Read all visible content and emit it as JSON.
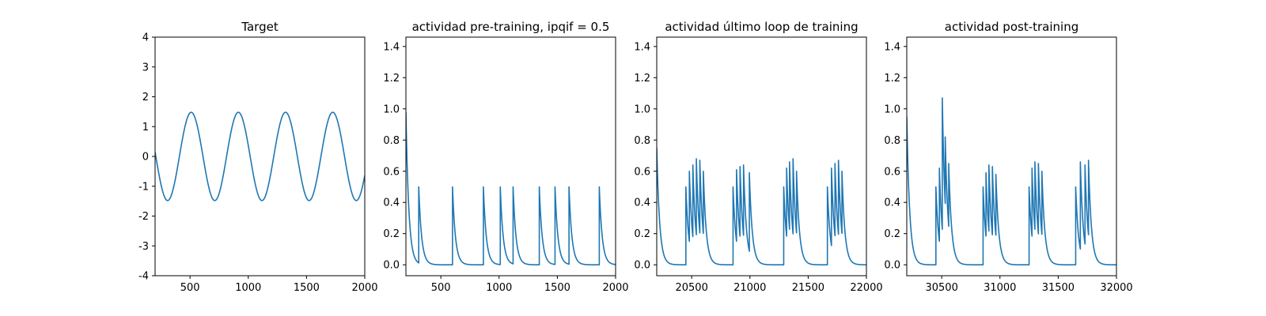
{
  "chart_data": [
    {
      "type": "line",
      "title": "Target",
      "xlabel": "",
      "ylabel": "",
      "xlim": [
        200,
        2000
      ],
      "ylim": [
        -4,
        4
      ],
      "xticks": [
        500,
        1000,
        1500,
        2000
      ],
      "yticks": [
        -4,
        -3,
        -2,
        -1,
        0,
        1,
        2,
        3,
        4
      ],
      "grid": false,
      "color": "#1f77b4",
      "signal": {
        "kind": "sine",
        "amplitude": 1.48,
        "period": 405,
        "peaks_at": [
          510,
          915,
          1320,
          1725
        ]
      },
      "series": [
        {
          "x_range": [
            200,
            2000
          ],
          "description_points": [
            [
              200,
              0.4
            ],
            [
              305,
              -1.48
            ],
            [
              510,
              1.48
            ],
            [
              712,
              -1.48
            ],
            [
              915,
              1.48
            ],
            [
              1117,
              -1.48
            ],
            [
              1320,
              1.48
            ],
            [
              1522,
              -1.48
            ],
            [
              1725,
              1.48
            ],
            [
              1928,
              -1.48
            ],
            [
              2000,
              -0.4
            ]
          ]
        }
      ]
    },
    {
      "type": "line",
      "title": "actividad pre-training, ipqif = 0.5",
      "xlabel": "",
      "ylabel": "",
      "xlim": [
        200,
        2000
      ],
      "ylim": [
        -0.07,
        1.46
      ],
      "xticks": [
        500,
        1000,
        1500,
        2000
      ],
      "yticks": [
        0.0,
        0.2,
        0.4,
        0.6,
        0.8,
        1.0,
        1.2,
        1.4
      ],
      "grid": false,
      "color": "#1f77b4",
      "decay": 25,
      "initial": {
        "x": 200,
        "y": 0.98
      },
      "spikes": [
        {
          "x": 310,
          "y": 0.5
        },
        {
          "x": 600,
          "y": 0.5
        },
        {
          "x": 865,
          "y": 0.5
        },
        {
          "x": 1010,
          "y": 0.5
        },
        {
          "x": 1120,
          "y": 0.5
        },
        {
          "x": 1345,
          "y": 0.5
        },
        {
          "x": 1480,
          "y": 0.5
        },
        {
          "x": 1600,
          "y": 0.5
        },
        {
          "x": 1860,
          "y": 0.5
        }
      ]
    },
    {
      "type": "line",
      "title": "actividad último loop de training",
      "xlabel": "",
      "ylabel": "",
      "xlim": [
        20200,
        22000
      ],
      "ylim": [
        -0.07,
        1.46
      ],
      "xticks": [
        20500,
        21000,
        21500,
        22000
      ],
      "yticks": [
        0.0,
        0.2,
        0.4,
        0.6,
        0.8,
        1.0,
        1.2,
        1.4
      ],
      "grid": false,
      "color": "#1f77b4",
      "decay": 25,
      "initial": {
        "x": 20200,
        "y": 0.75
      },
      "spikes": [
        {
          "x": 20450,
          "y": 0.5
        },
        {
          "x": 20480,
          "y": 0.6
        },
        {
          "x": 20510,
          "y": 0.64
        },
        {
          "x": 20540,
          "y": 0.68
        },
        {
          "x": 20570,
          "y": 0.67
        },
        {
          "x": 20600,
          "y": 0.6
        },
        {
          "x": 20855,
          "y": 0.5
        },
        {
          "x": 20885,
          "y": 0.61
        },
        {
          "x": 20915,
          "y": 0.63
        },
        {
          "x": 20945,
          "y": 0.64
        },
        {
          "x": 20995,
          "y": 0.59
        },
        {
          "x": 21290,
          "y": 0.5
        },
        {
          "x": 21315,
          "y": 0.62
        },
        {
          "x": 21340,
          "y": 0.66
        },
        {
          "x": 21370,
          "y": 0.68
        },
        {
          "x": 21400,
          "y": 0.6
        },
        {
          "x": 21665,
          "y": 0.5
        },
        {
          "x": 21700,
          "y": 0.62
        },
        {
          "x": 21730,
          "y": 0.65
        },
        {
          "x": 21760,
          "y": 0.67
        },
        {
          "x": 21790,
          "y": 0.6
        }
      ]
    },
    {
      "type": "line",
      "title": "actividad post-training",
      "xlabel": "",
      "ylabel": "",
      "xlim": [
        30200,
        32000
      ],
      "ylim": [
        -0.07,
        1.46
      ],
      "xticks": [
        30500,
        31000,
        31500,
        32000
      ],
      "yticks": [
        0.0,
        0.2,
        0.4,
        0.6,
        0.8,
        1.0,
        1.2,
        1.4
      ],
      "grid": false,
      "color": "#1f77b4",
      "decay": 25,
      "initial": {
        "x": 30200,
        "y": 0.95
      },
      "spikes": [
        {
          "x": 30450,
          "y": 0.5
        },
        {
          "x": 30480,
          "y": 0.62
        },
        {
          "x": 30505,
          "y": 1.07
        },
        {
          "x": 30530,
          "y": 0.82
        },
        {
          "x": 30560,
          "y": 0.65
        },
        {
          "x": 30855,
          "y": 0.5
        },
        {
          "x": 30880,
          "y": 0.59
        },
        {
          "x": 30905,
          "y": 0.64
        },
        {
          "x": 30935,
          "y": 0.63
        },
        {
          "x": 30965,
          "y": 0.58
        },
        {
          "x": 31250,
          "y": 0.5
        },
        {
          "x": 31275,
          "y": 0.62
        },
        {
          "x": 31300,
          "y": 0.66
        },
        {
          "x": 31330,
          "y": 0.65
        },
        {
          "x": 31360,
          "y": 0.6
        },
        {
          "x": 31650,
          "y": 0.5
        },
        {
          "x": 31690,
          "y": 0.66
        },
        {
          "x": 31730,
          "y": 0.64
        },
        {
          "x": 31760,
          "y": 0.67
        }
      ]
    }
  ]
}
